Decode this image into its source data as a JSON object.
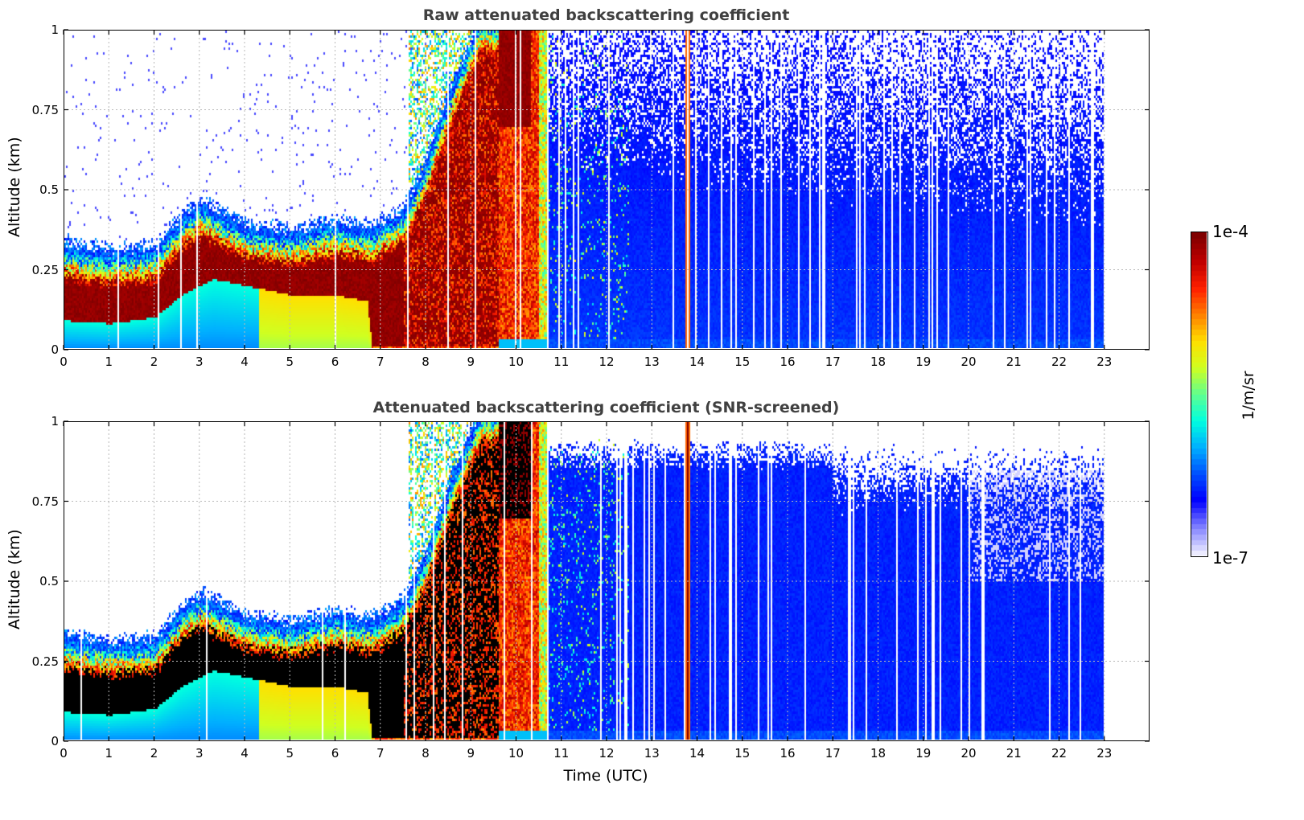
{
  "chart_data": [
    {
      "type": "heatmap",
      "title": "Raw attenuated backscattering coefficient",
      "ylabel": "Altitude (km)",
      "xlabel": "",
      "xlim": [
        0,
        24
      ],
      "ylim": [
        0,
        1
      ],
      "x_ticks": [
        "0",
        "1",
        "2",
        "3",
        "4",
        "5",
        "6",
        "7",
        "8",
        "9",
        "10",
        "11",
        "12",
        "13",
        "14",
        "15",
        "16",
        "17",
        "18",
        "19",
        "20",
        "21",
        "22",
        "23"
      ],
      "y_ticks": [
        "0",
        "0.25",
        "0.5",
        "0.75",
        "1"
      ],
      "grid": true,
      "data_end_hour": 23
    },
    {
      "type": "heatmap",
      "title": "Attenuated backscattering coefficient (SNR-screened)",
      "ylabel": "Altitude (km)",
      "xlabel": "Time (UTC)",
      "xlim": [
        0,
        24
      ],
      "ylim": [
        0,
        1
      ],
      "x_ticks": [
        "0",
        "1",
        "2",
        "3",
        "4",
        "5",
        "6",
        "7",
        "8",
        "9",
        "10",
        "11",
        "12",
        "13",
        "14",
        "15",
        "16",
        "17",
        "18",
        "19",
        "20",
        "21",
        "22",
        "23"
      ],
      "y_ticks": [
        "0",
        "0.25",
        "0.5",
        "0.75",
        "1"
      ],
      "grid": true,
      "data_end_hour": 23
    }
  ],
  "colorbar": {
    "max_label": "1e-4",
    "min_label": "1e-7",
    "units": "1/m/sr",
    "scale": "log",
    "colormap": [
      "#ecebff",
      "#7f7fff",
      "#0000ff",
      "#0050ff",
      "#00b0ff",
      "#00ffe0",
      "#60ff90",
      "#d0ff20",
      "#ffe000",
      "#ff8000",
      "#ff2000",
      "#c00000",
      "#800000"
    ]
  }
}
